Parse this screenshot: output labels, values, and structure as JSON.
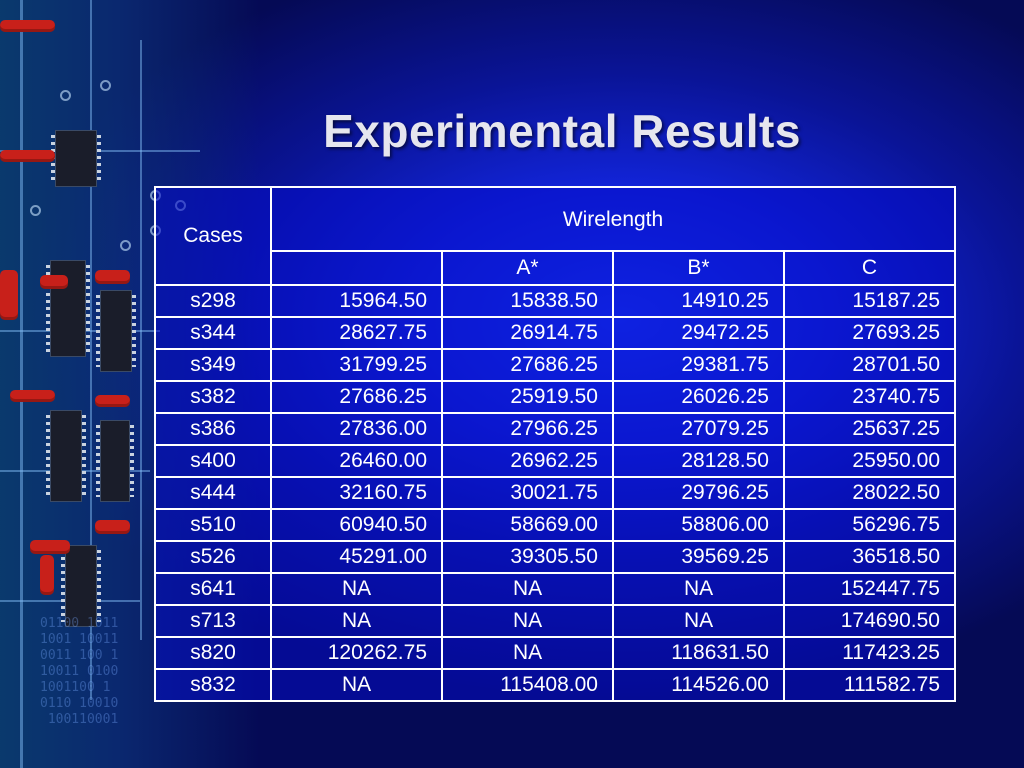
{
  "slide": {
    "title": "Experimental Results"
  },
  "table": {
    "header": {
      "cases": "Cases",
      "group": "Wirelength",
      "subcolumns": [
        "",
        "A*",
        "B*",
        "C"
      ]
    },
    "rows": [
      {
        "case": "s298",
        "values": [
          "15964.50",
          "15838.50",
          "14910.25",
          "15187.25"
        ]
      },
      {
        "case": "s344",
        "values": [
          "28627.75",
          "26914.75",
          "29472.25",
          "27693.25"
        ]
      },
      {
        "case": "s349",
        "values": [
          "31799.25",
          "27686.25",
          "29381.75",
          "28701.50"
        ]
      },
      {
        "case": "s382",
        "values": [
          "27686.25",
          "25919.50",
          "26026.25",
          "23740.75"
        ]
      },
      {
        "case": "s386",
        "values": [
          "27836.00",
          "27966.25",
          "27079.25",
          "25637.25"
        ]
      },
      {
        "case": "s400",
        "values": [
          "26460.00",
          "26962.25",
          "28128.50",
          "25950.00"
        ]
      },
      {
        "case": "s444",
        "values": [
          "32160.75",
          "30021.75",
          "29796.25",
          "28022.50"
        ]
      },
      {
        "case": "s510",
        "values": [
          "60940.50",
          "58669.00",
          "58806.00",
          "56296.75"
        ]
      },
      {
        "case": "s526",
        "values": [
          "45291.00",
          "39305.50",
          "39569.25",
          "36518.50"
        ]
      },
      {
        "case": "s641",
        "values": [
          "NA",
          "NA",
          "NA",
          "152447.75"
        ]
      },
      {
        "case": "s713",
        "values": [
          "NA",
          "NA",
          "NA",
          "174690.50"
        ]
      },
      {
        "case": "s820",
        "values": [
          "120262.75",
          "NA",
          "118631.50",
          "117423.25"
        ]
      },
      {
        "case": "s832",
        "values": [
          "NA",
          "115408.00",
          "114526.00",
          "111582.75"
        ]
      }
    ]
  },
  "decoration": {
    "circuit_digits": "01100 1011\n1001 10011\n0011 100 1\n10011 0100\n1001100 1\n0110 10010\n 100110001"
  }
}
